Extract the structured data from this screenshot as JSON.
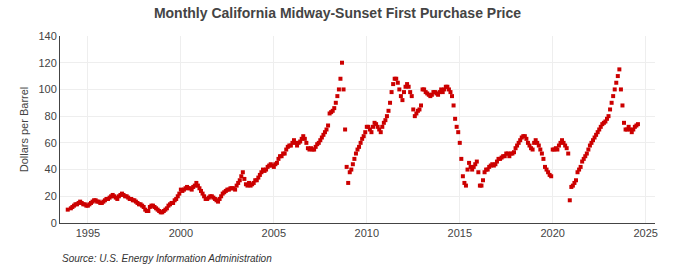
{
  "chart_data": {
    "type": "scatter",
    "title": "Monthly California Midway-Sunset First Purchase Price",
    "ylabel": "Dollars per Barrel",
    "annotations": [
      "Source: U.S. Energy Information Administration"
    ],
    "xlim": [
      1993.5,
      2025.5
    ],
    "ylim": [
      0,
      140
    ],
    "xticks": [
      1995,
      2000,
      2005,
      2010,
      2015,
      2020,
      2025
    ],
    "yticks": [
      0,
      20,
      40,
      60,
      80,
      100,
      120,
      140
    ],
    "grid": true,
    "color": "#cc0000",
    "marker": "square",
    "x": [
      1993.917,
      1994.083,
      1994.167,
      1994.25,
      1994.333,
      1994.417,
      1994.5,
      1994.583,
      1994.667,
      1994.75,
      1994.833,
      1994.917,
      1995.0,
      1995.083,
      1995.167,
      1995.25,
      1995.333,
      1995.417,
      1995.5,
      1995.583,
      1995.667,
      1995.75,
      1995.833,
      1995.917,
      1996.0,
      1996.083,
      1996.167,
      1996.25,
      1996.333,
      1996.417,
      1996.5,
      1996.583,
      1996.667,
      1996.75,
      1996.833,
      1996.917,
      1997.0,
      1997.083,
      1997.167,
      1997.25,
      1997.333,
      1997.417,
      1997.5,
      1997.583,
      1997.667,
      1997.75,
      1997.833,
      1997.917,
      1998.0,
      1998.083,
      1998.167,
      1998.25,
      1998.333,
      1998.417,
      1998.5,
      1998.583,
      1998.667,
      1998.75,
      1998.833,
      1998.917,
      1999.0,
      1999.083,
      1999.167,
      1999.25,
      1999.333,
      1999.417,
      1999.5,
      1999.583,
      1999.667,
      1999.75,
      1999.833,
      1999.917,
      2000.0,
      2000.083,
      2000.167,
      2000.25,
      2000.333,
      2000.417,
      2000.5,
      2000.583,
      2000.667,
      2000.75,
      2000.833,
      2000.917,
      2001.0,
      2001.083,
      2001.167,
      2001.25,
      2001.333,
      2001.417,
      2001.5,
      2001.583,
      2001.667,
      2001.75,
      2001.833,
      2001.917,
      2002.0,
      2002.083,
      2002.167,
      2002.25,
      2002.333,
      2002.417,
      2002.5,
      2002.583,
      2002.667,
      2002.75,
      2002.833,
      2002.917,
      2003.0,
      2003.083,
      2003.167,
      2003.25,
      2003.333,
      2003.417,
      2003.5,
      2003.583,
      2003.667,
      2003.75,
      2003.833,
      2003.917,
      2004.0,
      2004.083,
      2004.167,
      2004.25,
      2004.333,
      2004.417,
      2004.5,
      2004.583,
      2004.667,
      2004.75,
      2004.833,
      2004.917,
      2005.0,
      2005.083,
      2005.167,
      2005.25,
      2005.333,
      2005.417,
      2005.5,
      2005.583,
      2005.667,
      2005.75,
      2005.833,
      2005.917,
      2006.0,
      2006.083,
      2006.167,
      2006.25,
      2006.333,
      2006.417,
      2006.5,
      2006.583,
      2006.667,
      2006.75,
      2006.833,
      2006.917,
      2007.0,
      2007.083,
      2007.167,
      2007.25,
      2007.333,
      2007.417,
      2007.5,
      2007.583,
      2007.667,
      2007.75,
      2007.833,
      2007.917,
      2008.0,
      2008.083,
      2008.167,
      2008.25,
      2008.333,
      2008.417,
      2008.5,
      2008.583,
      2008.667,
      2008.75,
      2008.833,
      2008.917,
      2009.0,
      2009.083,
      2009.167,
      2009.25,
      2009.333,
      2009.417,
      2009.5,
      2009.583,
      2009.667,
      2009.75,
      2009.833,
      2009.917,
      2010.0,
      2010.083,
      2010.167,
      2010.25,
      2010.333,
      2010.417,
      2010.5,
      2010.583,
      2010.667,
      2010.75,
      2010.833,
      2010.917,
      2011.0,
      2011.083,
      2011.167,
      2011.25,
      2011.333,
      2011.417,
      2011.5,
      2011.583,
      2011.667,
      2011.75,
      2011.833,
      2011.917,
      2012.0,
      2012.083,
      2012.167,
      2012.25,
      2012.333,
      2012.417,
      2012.5,
      2012.583,
      2012.667,
      2012.75,
      2012.833,
      2012.917,
      2013.0,
      2013.083,
      2013.167,
      2013.25,
      2013.333,
      2013.417,
      2013.5,
      2013.583,
      2013.667,
      2013.75,
      2013.833,
      2013.917,
      2014.0,
      2014.083,
      2014.167,
      2014.25,
      2014.333,
      2014.417,
      2014.5,
      2014.583,
      2014.667,
      2014.75,
      2014.833,
      2014.917,
      2015.0,
      2015.083,
      2015.167,
      2015.25,
      2015.333,
      2015.417,
      2015.5,
      2015.583,
      2015.667,
      2015.75,
      2015.833,
      2015.917,
      2016.0,
      2016.083,
      2016.167,
      2016.25,
      2016.333,
      2016.417,
      2016.5,
      2016.583,
      2016.667,
      2016.75,
      2016.833,
      2016.917,
      2017.0,
      2017.083,
      2017.167,
      2017.25,
      2017.333,
      2017.417,
      2017.5,
      2017.583,
      2017.667,
      2017.75,
      2017.833,
      2017.917,
      2018.0,
      2018.083,
      2018.167,
      2018.25,
      2018.333,
      2018.417,
      2018.5,
      2018.583,
      2018.667,
      2018.75,
      2018.833,
      2018.917,
      2019.0,
      2019.083,
      2019.167,
      2019.25,
      2019.333,
      2019.417,
      2019.5,
      2019.583,
      2019.667,
      2019.75,
      2019.833,
      2019.917,
      2020.0,
      2020.083,
      2020.167,
      2020.25,
      2020.333,
      2020.417,
      2020.5,
      2020.583,
      2020.667,
      2020.75,
      2020.833,
      2020.917,
      2021.0,
      2021.083,
      2021.167,
      2021.25,
      2021.333,
      2021.417,
      2021.5,
      2021.583,
      2021.667,
      2021.75,
      2021.833,
      2021.917,
      2022.0,
      2022.083,
      2022.167,
      2022.25,
      2022.333,
      2022.417,
      2022.5,
      2022.583,
      2022.667,
      2022.75,
      2022.833,
      2022.917,
      2023.0,
      2023.083,
      2023.167,
      2023.25,
      2023.333,
      2023.417,
      2023.5,
      2023.583,
      2023.667,
      2023.75,
      2023.833,
      2023.917,
      2024.0,
      2024.083,
      2024.167,
      2024.25,
      2024.333,
      2024.417,
      2024.5,
      2024.583
    ],
    "values": [
      10,
      11,
      12,
      13,
      14,
      14,
      15,
      16,
      15,
      14,
      14,
      13,
      13,
      14,
      15,
      16,
      17,
      17,
      16,
      16,
      15,
      15,
      16,
      17,
      18,
      18,
      19,
      20,
      21,
      20,
      19,
      18,
      20,
      21,
      22,
      21,
      20,
      20,
      19,
      18,
      18,
      17,
      17,
      16,
      15,
      14,
      14,
      13,
      12,
      10,
      9,
      9,
      12,
      13,
      13,
      12,
      11,
      10,
      9,
      8,
      8,
      9,
      10,
      11,
      13,
      14,
      15,
      15,
      17,
      18,
      20,
      22,
      25,
      24,
      25,
      26,
      27,
      26,
      26,
      25,
      27,
      28,
      30,
      28,
      26,
      24,
      22,
      20,
      18,
      18,
      19,
      20,
      20,
      19,
      18,
      17,
      16,
      18,
      20,
      22,
      23,
      24,
      25,
      25,
      26,
      26,
      26,
      25,
      28,
      30,
      32,
      35,
      38,
      33,
      29,
      28,
      30,
      28,
      29,
      30,
      32,
      32,
      34,
      36,
      38,
      40,
      39,
      40,
      42,
      43,
      44,
      43,
      42,
      44,
      45,
      48,
      50,
      50,
      52,
      52,
      55,
      57,
      58,
      58,
      60,
      62,
      60,
      58,
      60,
      61,
      63,
      65,
      63,
      60,
      56,
      55,
      56,
      55,
      55,
      57,
      59,
      60,
      62,
      64,
      66,
      68,
      70,
      73,
      82,
      83,
      84,
      86,
      90,
      95,
      100,
      108,
      120,
      100,
      70,
      42,
      30,
      38,
      40,
      44,
      48,
      52,
      55,
      57,
      60,
      63,
      65,
      68,
      72,
      72,
      70,
      68,
      72,
      75,
      74,
      72,
      70,
      68,
      72,
      75,
      77,
      80,
      84,
      90,
      98,
      104,
      108,
      108,
      105,
      100,
      95,
      92,
      98,
      102,
      104,
      102,
      98,
      95,
      85,
      80,
      82,
      84,
      85,
      88,
      100,
      100,
      98,
      97,
      96,
      95,
      96,
      98,
      98,
      97,
      96,
      98,
      100,
      98,
      100,
      102,
      102,
      100,
      98,
      95,
      88,
      78,
      72,
      68,
      60,
      48,
      35,
      30,
      28,
      40,
      45,
      42,
      40,
      42,
      44,
      46,
      38,
      28,
      28,
      32,
      38,
      40,
      40,
      42,
      43,
      44,
      43,
      44,
      46,
      48,
      48,
      49,
      50,
      50,
      52,
      52,
      50,
      52,
      52,
      53,
      56,
      58,
      60,
      62,
      64,
      65,
      65,
      63,
      60,
      58,
      56,
      55,
      60,
      62,
      60,
      58,
      55,
      52,
      48,
      42,
      40,
      38,
      36,
      35,
      55,
      55,
      56,
      55,
      58,
      60,
      62,
      60,
      58,
      56,
      52,
      17,
      27,
      28,
      30,
      32,
      38,
      40,
      42,
      46,
      48,
      50,
      52,
      55,
      58,
      60,
      62,
      64,
      66,
      68,
      70,
      72,
      74,
      75,
      76,
      78,
      80,
      85,
      90,
      95,
      100,
      105,
      110,
      115,
      100,
      88,
      75,
      70,
      70,
      72,
      70,
      68,
      70,
      72,
      73,
      74
    ]
  }
}
